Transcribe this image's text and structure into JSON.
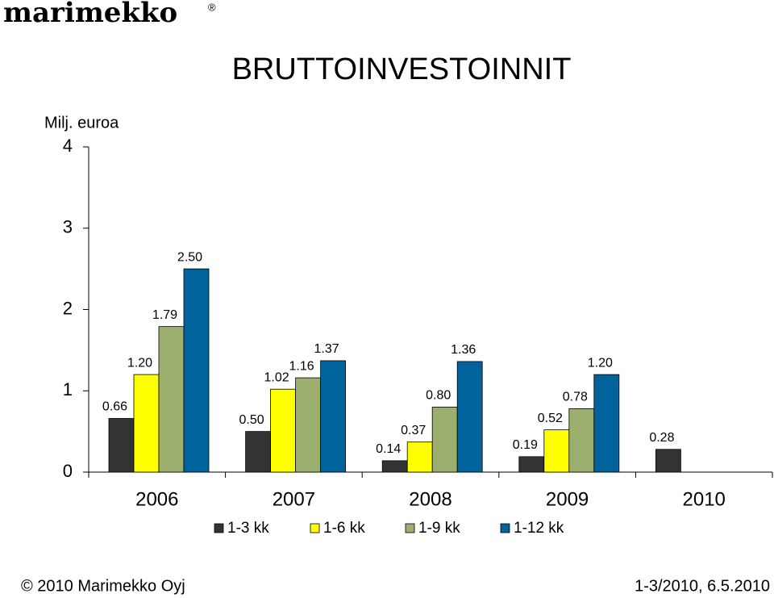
{
  "logo": {
    "text": "marimekko",
    "mark": "®"
  },
  "footer": {
    "left": "© 2010 Marimekko Oyj",
    "right": "1-3/2010, 6.5.2010"
  },
  "chart_data": {
    "type": "bar",
    "title": "BRUTTOINVESTOINNIT",
    "y_label": "Milj. euroa",
    "categories": [
      "2006",
      "2007",
      "2008",
      "2009",
      "2010"
    ],
    "series": [
      {
        "name": "1-3 kk",
        "color": "#333333",
        "values": [
          0.66,
          0.5,
          0.14,
          0.19,
          0.28
        ],
        "value_labels": [
          "0.66",
          "0.50",
          "0.14",
          "0.19",
          "0.28"
        ]
      },
      {
        "name": "1-6 kk",
        "color": "#ffff00",
        "values": [
          1.2,
          1.02,
          0.37,
          0.52,
          null
        ],
        "value_labels": [
          "1.20",
          "1.02",
          "0.37",
          "0.52",
          null
        ]
      },
      {
        "name": "1-9 kk",
        "color": "#9caf6e",
        "values": [
          1.79,
          1.16,
          0.8,
          0.78,
          null
        ],
        "value_labels": [
          "1.79",
          "1.16",
          "0.80",
          "0.78",
          null
        ]
      },
      {
        "name": "1-12 kk",
        "color": "#00639c",
        "values": [
          2.5,
          1.37,
          1.36,
          1.2,
          null
        ],
        "value_labels": [
          "2.50",
          "1.37",
          "1.36",
          "1.20",
          null
        ]
      }
    ],
    "ylim": [
      0,
      4
    ],
    "yticks": [
      0,
      1,
      2,
      3,
      4
    ],
    "grid": false,
    "legend": "bottom"
  }
}
